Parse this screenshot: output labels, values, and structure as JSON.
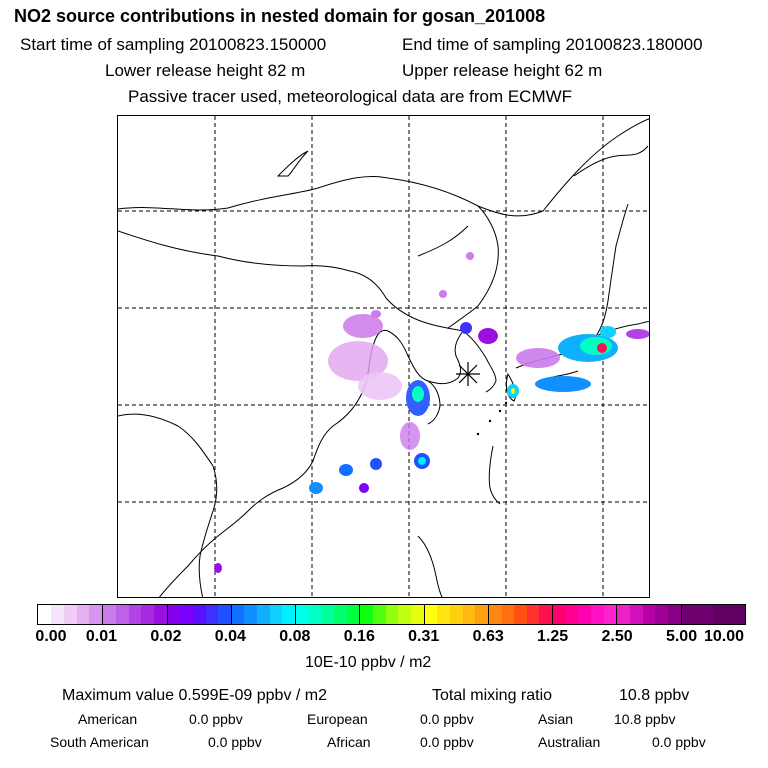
{
  "header": {
    "title": "NO2 source contributions in nested domain for gosan_201008",
    "start_time": "Start time of sampling 20100823.150000",
    "end_time": "End time of sampling 20100823.180000",
    "lower_height": "Lower release height   82 m",
    "upper_height": "Upper release height   62 m",
    "note": "Passive tracer used, meteorological data are from ECMWF"
  },
  "map": {
    "receptor_marker": "star-icon",
    "gridlines": "dashed"
  },
  "colorbar": {
    "ticks": [
      "0.00",
      "0.01",
      "0.02",
      "0.04",
      "0.08",
      "0.16",
      "0.31",
      "0.63",
      "1.25",
      "2.50",
      "5.00",
      "10.00"
    ],
    "unit": "10E-10 ppbv / m2",
    "colors": [
      "#ffffff",
      "#f7e6fb",
      "#f0ccf7",
      "#e6b0f3",
      "#d895f0",
      "#cc7bec",
      "#bf60e8",
      "#b243e6",
      "#a829e0",
      "#9b10e0",
      "#8600ee",
      "#7a00ff",
      "#5a10ff",
      "#4030ff",
      "#2050ff",
      "#1070ff",
      "#1090ff",
      "#10b0ff",
      "#10d0ff",
      "#00f0ff",
      "#00ffe6",
      "#00ffc0",
      "#00ff9a",
      "#00ff6a",
      "#00ff3c",
      "#10ff10",
      "#50ff10",
      "#90ff10",
      "#c0ff10",
      "#e6ff10",
      "#ffff10",
      "#ffe610",
      "#ffd010",
      "#ffba10",
      "#ffa010",
      "#ff8810",
      "#ff7010",
      "#ff5010",
      "#ff3030",
      "#ff1050",
      "#ff0070",
      "#ff0090",
      "#ff00b0",
      "#ff10c0",
      "#ff20d0",
      "#ee20c8",
      "#d010b8",
      "#b800a8",
      "#a00098",
      "#880088",
      "#700070",
      "#600060"
    ]
  },
  "stats": {
    "max_label": "Maximum value  0.599E-09 ppbv / m2",
    "total_label": "Total mixing ratio",
    "total_value": "10.8 ppbv"
  },
  "regions": [
    {
      "name": "American",
      "value": "0.0 ppbv"
    },
    {
      "name": "European",
      "value": "0.0 ppbv"
    },
    {
      "name": "Asian",
      "value": "10.8 ppbv"
    },
    {
      "name": "South American",
      "value": "0.0 ppbv"
    },
    {
      "name": "African",
      "value": "0.0 ppbv"
    },
    {
      "name": "Australian",
      "value": "0.0 ppbv"
    }
  ]
}
